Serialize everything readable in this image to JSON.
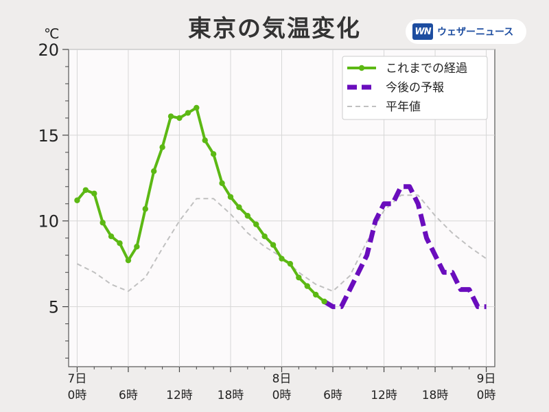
{
  "header": {
    "title": "東京の気温変化",
    "logo_mark": "WN",
    "logo_text": "ウェザーニュース",
    "logo_colors": {
      "bg": "#ffffff",
      "mark": "#1d4da0"
    }
  },
  "chart_data": {
    "type": "line",
    "title": "東京の気温変化",
    "ylabel": "℃",
    "xlabel": "",
    "x_unit": "hours since 7日 0時",
    "xlim": [
      -1,
      49
    ],
    "ylim": [
      1.5,
      20
    ],
    "yticks": [
      5,
      10,
      15,
      20
    ],
    "xticks": [
      {
        "x": 0,
        "label": [
          "7日",
          "0時"
        ]
      },
      {
        "x": 6,
        "label": [
          "6時"
        ]
      },
      {
        "x": 12,
        "label": [
          "12時"
        ]
      },
      {
        "x": 18,
        "label": [
          "18時"
        ]
      },
      {
        "x": 24,
        "label": [
          "8日",
          "0時"
        ]
      },
      {
        "x": 30,
        "label": [
          "6時"
        ]
      },
      {
        "x": 36,
        "label": [
          "12時"
        ]
      },
      {
        "x": 42,
        "label": [
          "18時"
        ]
      },
      {
        "x": 48,
        "label": [
          "9日",
          "0時"
        ]
      }
    ],
    "grid": true,
    "legend_position": "top-right",
    "series": [
      {
        "name": "これまでの経過",
        "color": "#5cb814",
        "style": "solid-markers",
        "x": [
          0,
          1,
          2,
          3,
          4,
          5,
          6,
          7,
          8,
          9,
          10,
          11,
          12,
          13,
          14,
          15,
          16,
          17,
          18,
          19,
          20,
          21,
          22,
          23,
          24,
          25,
          26,
          27,
          28,
          29
        ],
        "values": [
          11.2,
          11.8,
          11.6,
          9.9,
          9.1,
          8.7,
          7.7,
          8.5,
          10.7,
          12.9,
          14.3,
          16.1,
          16.0,
          16.3,
          16.6,
          14.7,
          13.9,
          12.2,
          11.4,
          10.8,
          10.3,
          9.8,
          9.1,
          8.6,
          7.8,
          7.5,
          6.7,
          6.2,
          5.7,
          5.3
        ]
      },
      {
        "name": "今後の予報",
        "color": "#6a0dbd",
        "style": "dashed-thick",
        "x": [
          29,
          30,
          31,
          32,
          33,
          34,
          35,
          36,
          37,
          38,
          39,
          40,
          41,
          42,
          43,
          44,
          45,
          46,
          47,
          48
        ],
        "values": [
          5.3,
          5.0,
          5.0,
          6.0,
          7.0,
          8.0,
          10.0,
          11.0,
          11.0,
          12.0,
          12.0,
          11.0,
          9.0,
          8.0,
          7.0,
          7.0,
          6.0,
          6.0,
          5.0,
          5.0
        ]
      },
      {
        "name": "平年値",
        "color": "#c0c0c0",
        "style": "dashed-thin",
        "x": [
          0,
          2,
          4,
          6,
          8,
          10,
          12,
          14,
          16,
          18,
          20,
          22,
          24,
          26,
          28,
          30,
          32,
          34,
          36,
          38,
          40,
          42,
          44,
          46,
          48
        ],
        "values": [
          7.5,
          7.0,
          6.3,
          5.9,
          6.7,
          8.4,
          10.0,
          11.3,
          11.3,
          10.4,
          9.3,
          8.5,
          7.9,
          7.0,
          6.3,
          5.9,
          6.8,
          8.8,
          10.6,
          11.5,
          11.5,
          10.3,
          9.3,
          8.5,
          7.8
        ]
      }
    ]
  }
}
